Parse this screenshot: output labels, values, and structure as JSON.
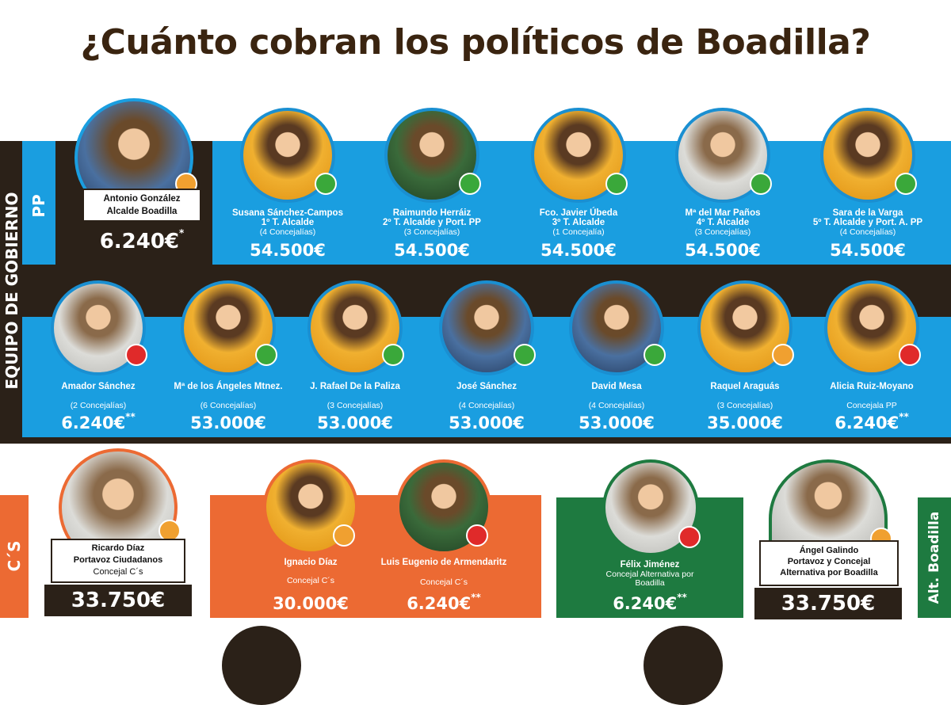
{
  "title": "¿Cuánto cobran los políticos de Boadilla?",
  "labels": {
    "gobierno": "EQUIPO DE GOBIERNO",
    "pp": "PP",
    "cs": "C´S",
    "alt": "Alt. Boadilla"
  },
  "alcalde": {
    "name": "Antonio González",
    "role": "Alcalde Boadilla",
    "amount": "6.240€",
    "mark": "*"
  },
  "row1": [
    {
      "name": "Susana Sánchez-Campos",
      "role": "1º T. Alcalde",
      "sub": "(4 Concejalías)",
      "amount": "54.500€"
    },
    {
      "name": "Raimundo Herráiz",
      "role": "2º T. Alcalde y Port. PP",
      "sub": "(3 Concejalías)",
      "amount": "54.500€"
    },
    {
      "name": "Fco. Javier Úbeda",
      "role": "3º T. Alcalde",
      "sub": "(1 Concejalía)",
      "amount": "54.500€"
    },
    {
      "name": "Mª del Mar Paños",
      "role": "4º T. Alcalde",
      "sub": "(3 Concejalías)",
      "amount": "54.500€"
    },
    {
      "name": "Sara de la Varga",
      "role": "5º T. Alcalde y Port. A. PP",
      "sub": "(4 Concejalías)",
      "amount": "54.500€"
    }
  ],
  "row2": [
    {
      "name": "Amador Sánchez",
      "sub": "(2 Concejalías)",
      "amount": "6.240€",
      "mark": "**"
    },
    {
      "name": "Mª de los Ángeles Mtnez.",
      "sub": "(6 Concejalías)",
      "amount": "53.000€",
      "mark": ""
    },
    {
      "name": "J. Rafael De la Paliza",
      "sub": "(3 Concejalías)",
      "amount": "53.000€",
      "mark": ""
    },
    {
      "name": "José Sánchez",
      "sub": "(4 Concejalías)",
      "amount": "53.000€",
      "mark": ""
    },
    {
      "name": "David Mesa",
      "sub": "(4 Concejalías)",
      "amount": "53.000€",
      "mark": ""
    },
    {
      "name": "Raquel Araguás",
      "sub": "(3 Concejalías)",
      "amount": "35.000€",
      "mark": ""
    },
    {
      "name": "Alicia Ruiz-Moyano",
      "sub": "Concejala PP",
      "amount": "6.240€",
      "mark": "**"
    }
  ],
  "cs_portavoz": {
    "name": "Ricardo Díaz",
    "role": "Portavoz Ciudadanos",
    "sub": "Concejal C´s",
    "amount": "33.750€"
  },
  "cs_members": [
    {
      "name": "Ignacio Díaz",
      "sub": "Concejal C´s",
      "amount": "30.000€",
      "mark": ""
    },
    {
      "name": "Luis Eugenio de Armendaritz",
      "sub": "Concejal C´s",
      "amount": "6.240€",
      "mark": "**"
    }
  ],
  "alt_member": {
    "name": "Félix Jiménez",
    "sub": "Concejal Alternativa por Boadilla",
    "amount": "6.240€",
    "mark": "**"
  },
  "alt_portavoz": {
    "name": "Ángel Galindo",
    "role": "Portavoz y Concejal Alternativa por Boadilla",
    "amount": "33.750€"
  },
  "colors": {
    "blue": "#1a9ee0",
    "dark": "#2b2118",
    "orange": "#ec6a33",
    "green": "#1e7a40"
  }
}
